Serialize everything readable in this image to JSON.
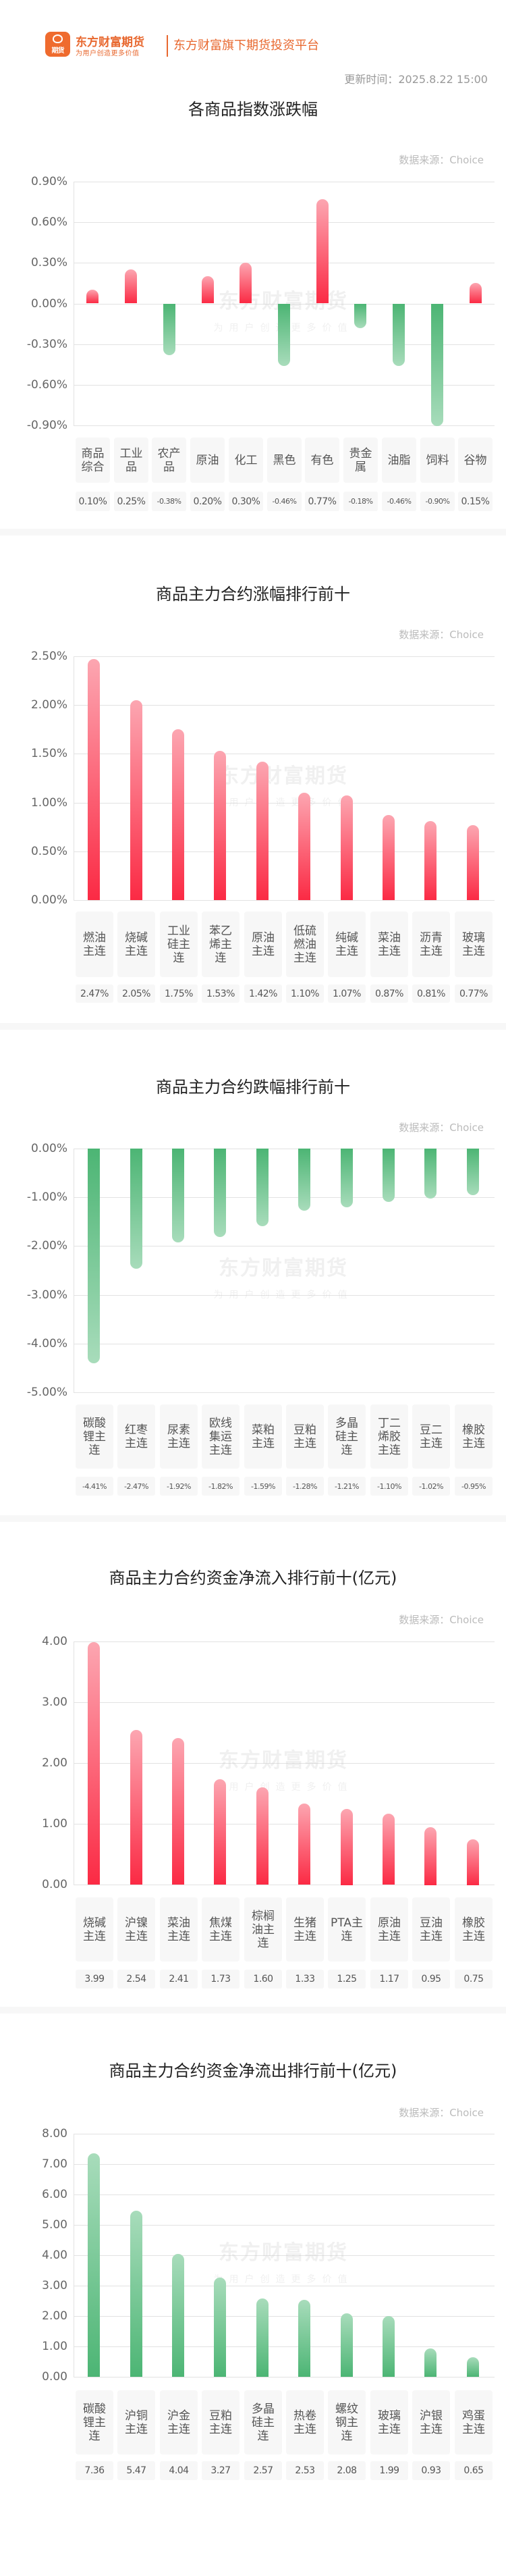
{
  "header": {
    "logo_icon": "eastmoney-futures-logo-icon",
    "logo_text": "期货",
    "brand_name": "东方财富期货",
    "brand_slogan": "为用户创造更多价值",
    "platform": "东方财富旗下期货投资平台",
    "update_time": "更新时间：2025.8.22 15:00"
  },
  "watermark": {
    "main": "东方财富期货",
    "sub": "为用户创造更多价值"
  },
  "colors": {
    "brand": "#e8682f",
    "up_red": "#fb2a44",
    "down_green": "#4cb574",
    "grid": "#e2e2e2",
    "label_bg": "#f7f7f7"
  },
  "sections": [
    {
      "title": "各商品指数涨跌幅",
      "source": "数据来源：Choice"
    },
    {
      "title": "商品主力合约涨幅排行前十",
      "source": "数据来源：Choice"
    },
    {
      "title": "商品主力合约跌幅排行前十",
      "source": "数据来源：Choice"
    },
    {
      "title": "商品主力合约资金净流入排行前十(亿元)",
      "source": "数据来源：Choice"
    },
    {
      "title": "商品主力合约资金净流出排行前十(亿元)",
      "source": "数据来源：Choice"
    }
  ],
  "chart_data": [
    {
      "type": "bar",
      "title": "各商品指数涨跌幅",
      "categories": [
        "商品综合",
        "工业品",
        "农产品",
        "原油",
        "化工",
        "黑色",
        "有色",
        "贵金属",
        "油脂",
        "饲料",
        "谷物"
      ],
      "values": [
        0.1,
        0.25,
        -0.38,
        0.2,
        0.3,
        -0.46,
        0.77,
        -0.18,
        -0.46,
        -0.9,
        0.15
      ],
      "value_labels": [
        "0.10%",
        "0.25%",
        "-0.38%",
        "0.20%",
        "0.30%",
        "-0.46%",
        "0.77%",
        "-0.18%",
        "-0.46%",
        "-0.90%",
        "0.15%"
      ],
      "yticks": [
        "0.90%",
        "0.60%",
        "0.30%",
        "0.00%",
        "-0.30%",
        "-0.60%",
        "-0.90%"
      ],
      "ylim": [
        -0.9,
        0.9
      ],
      "xlabel": "",
      "ylabel": "",
      "grid": true,
      "legend": "none",
      "unit": "%"
    },
    {
      "type": "bar",
      "title": "商品主力合约涨幅排行前十",
      "categories": [
        "燃油主连",
        "烧碱主连",
        "工业硅主连",
        "苯乙烯主连",
        "原油主连",
        "低硫燃油主连",
        "纯碱主连",
        "菜油主连",
        "沥青主连",
        "玻璃主连"
      ],
      "values": [
        2.47,
        2.05,
        1.75,
        1.53,
        1.42,
        1.1,
        1.07,
        0.87,
        0.81,
        0.77
      ],
      "value_labels": [
        "2.47%",
        "2.05%",
        "1.75%",
        "1.53%",
        "1.42%",
        "1.10%",
        "1.07%",
        "0.87%",
        "0.81%",
        "0.77%"
      ],
      "yticks": [
        "2.50%",
        "2.00%",
        "1.50%",
        "1.00%",
        "0.50%",
        "0.00%"
      ],
      "ylim": [
        0,
        2.5
      ],
      "xlabel": "",
      "ylabel": "",
      "grid": true,
      "legend": "none",
      "unit": "%"
    },
    {
      "type": "bar",
      "title": "商品主力合约跌幅排行前十",
      "categories": [
        "碳酸锂主连",
        "红枣主连",
        "尿素主连",
        "欧线集运主连",
        "菜粕主连",
        "豆粕主连",
        "多晶硅主连",
        "丁二烯胶主连",
        "豆二主连",
        "橡胶主连"
      ],
      "values": [
        -4.41,
        -2.47,
        -1.92,
        -1.82,
        -1.59,
        -1.28,
        -1.21,
        -1.1,
        -1.02,
        -0.95
      ],
      "value_labels": [
        "-4.41%",
        "-2.47%",
        "-1.92%",
        "-1.82%",
        "-1.59%",
        "-1.28%",
        "-1.21%",
        "-1.10%",
        "-1.02%",
        "-0.95%"
      ],
      "yticks": [
        "0.00%",
        "-1.00%",
        "-2.00%",
        "-3.00%",
        "-4.00%",
        "-5.00%"
      ],
      "ylim": [
        -5.0,
        0
      ],
      "xlabel": "",
      "ylabel": "",
      "grid": true,
      "legend": "none",
      "unit": "%"
    },
    {
      "type": "bar",
      "title": "商品主力合约资金净流入排行前十(亿元)",
      "categories": [
        "烧碱主连",
        "沪镍主连",
        "菜油主连",
        "焦煤主连",
        "棕榈油主连",
        "生猪主连",
        "PTA主连",
        "原油主连",
        "豆油主连",
        "橡胶主连"
      ],
      "values": [
        3.99,
        2.54,
        2.41,
        1.73,
        1.6,
        1.33,
        1.25,
        1.17,
        0.95,
        0.75
      ],
      "value_labels": [
        "3.99",
        "2.54",
        "2.41",
        "1.73",
        "1.60",
        "1.33",
        "1.25",
        "1.17",
        "0.95",
        "0.75"
      ],
      "yticks": [
        "4.00",
        "3.00",
        "2.00",
        "1.00",
        "0.00"
      ],
      "ylim": [
        0,
        4.0
      ],
      "xlabel": "",
      "ylabel": "亿元",
      "grid": true,
      "legend": "none"
    },
    {
      "type": "bar",
      "title": "商品主力合约资金净流出排行前十(亿元)",
      "categories": [
        "碳酸锂主连",
        "沪铜主连",
        "沪金主连",
        "豆粕主连",
        "多晶硅主连",
        "热卷主连",
        "螺纹钢主连",
        "玻璃主连",
        "沪银主连",
        "鸡蛋主连"
      ],
      "values": [
        7.36,
        5.47,
        4.04,
        3.27,
        2.57,
        2.53,
        2.08,
        1.99,
        0.93,
        0.65
      ],
      "value_labels": [
        "7.36",
        "5.47",
        "4.04",
        "3.27",
        "2.57",
        "2.53",
        "2.08",
        "1.99",
        "0.93",
        "0.65"
      ],
      "yticks": [
        "8.00",
        "7.00",
        "6.00",
        "5.00",
        "4.00",
        "3.00",
        "2.00",
        "1.00",
        "0.00"
      ],
      "ylim": [
        0,
        8.0
      ],
      "xlabel": "",
      "ylabel": "亿元",
      "grid": true,
      "legend": "none"
    }
  ]
}
